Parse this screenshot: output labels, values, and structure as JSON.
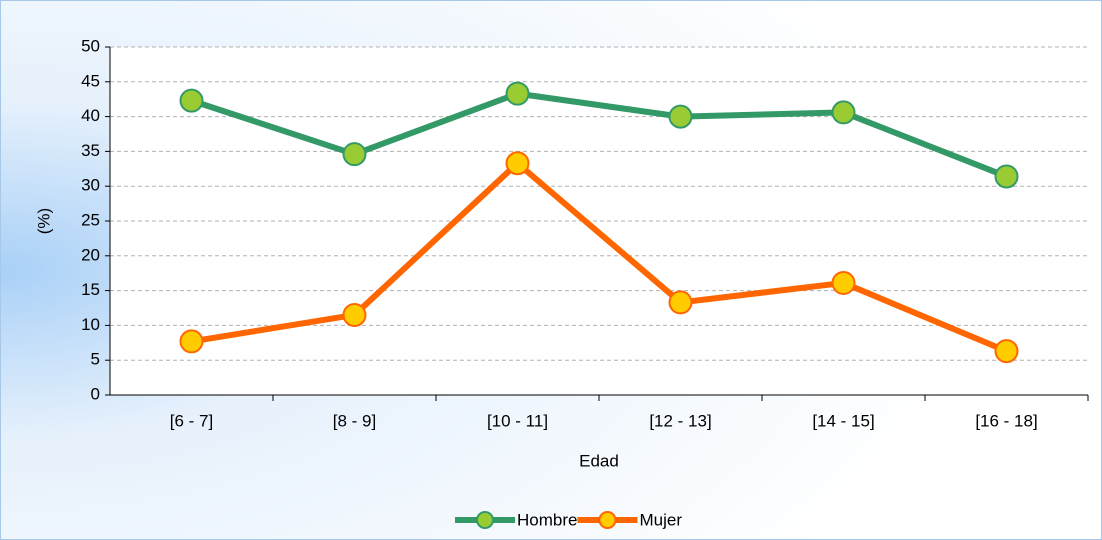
{
  "chart_data": {
    "type": "line",
    "categories": [
      "[6 - 7]",
      "[8 - 9]",
      "[10 - 11]",
      "[12 - 13]",
      "[14 - 15]",
      "[16 - 18]"
    ],
    "series": [
      {
        "name": "Hombre",
        "color": "#339966",
        "marker_color": "#99cc33",
        "values": [
          42.3,
          34.6,
          43.3,
          40.0,
          40.6,
          31.4
        ]
      },
      {
        "name": "Mujer",
        "color": "#ff6600",
        "marker_color": "#ffcc00",
        "values": [
          7.7,
          11.5,
          33.3,
          13.3,
          16.1,
          6.3
        ]
      }
    ],
    "xlabel": "Edad",
    "ylabel": "(%)",
    "ylim": [
      0,
      50
    ],
    "yticks": [
      0,
      5,
      10,
      15,
      20,
      25,
      30,
      35,
      40,
      45,
      50
    ],
    "grid": true,
    "legend": "bottom"
  }
}
